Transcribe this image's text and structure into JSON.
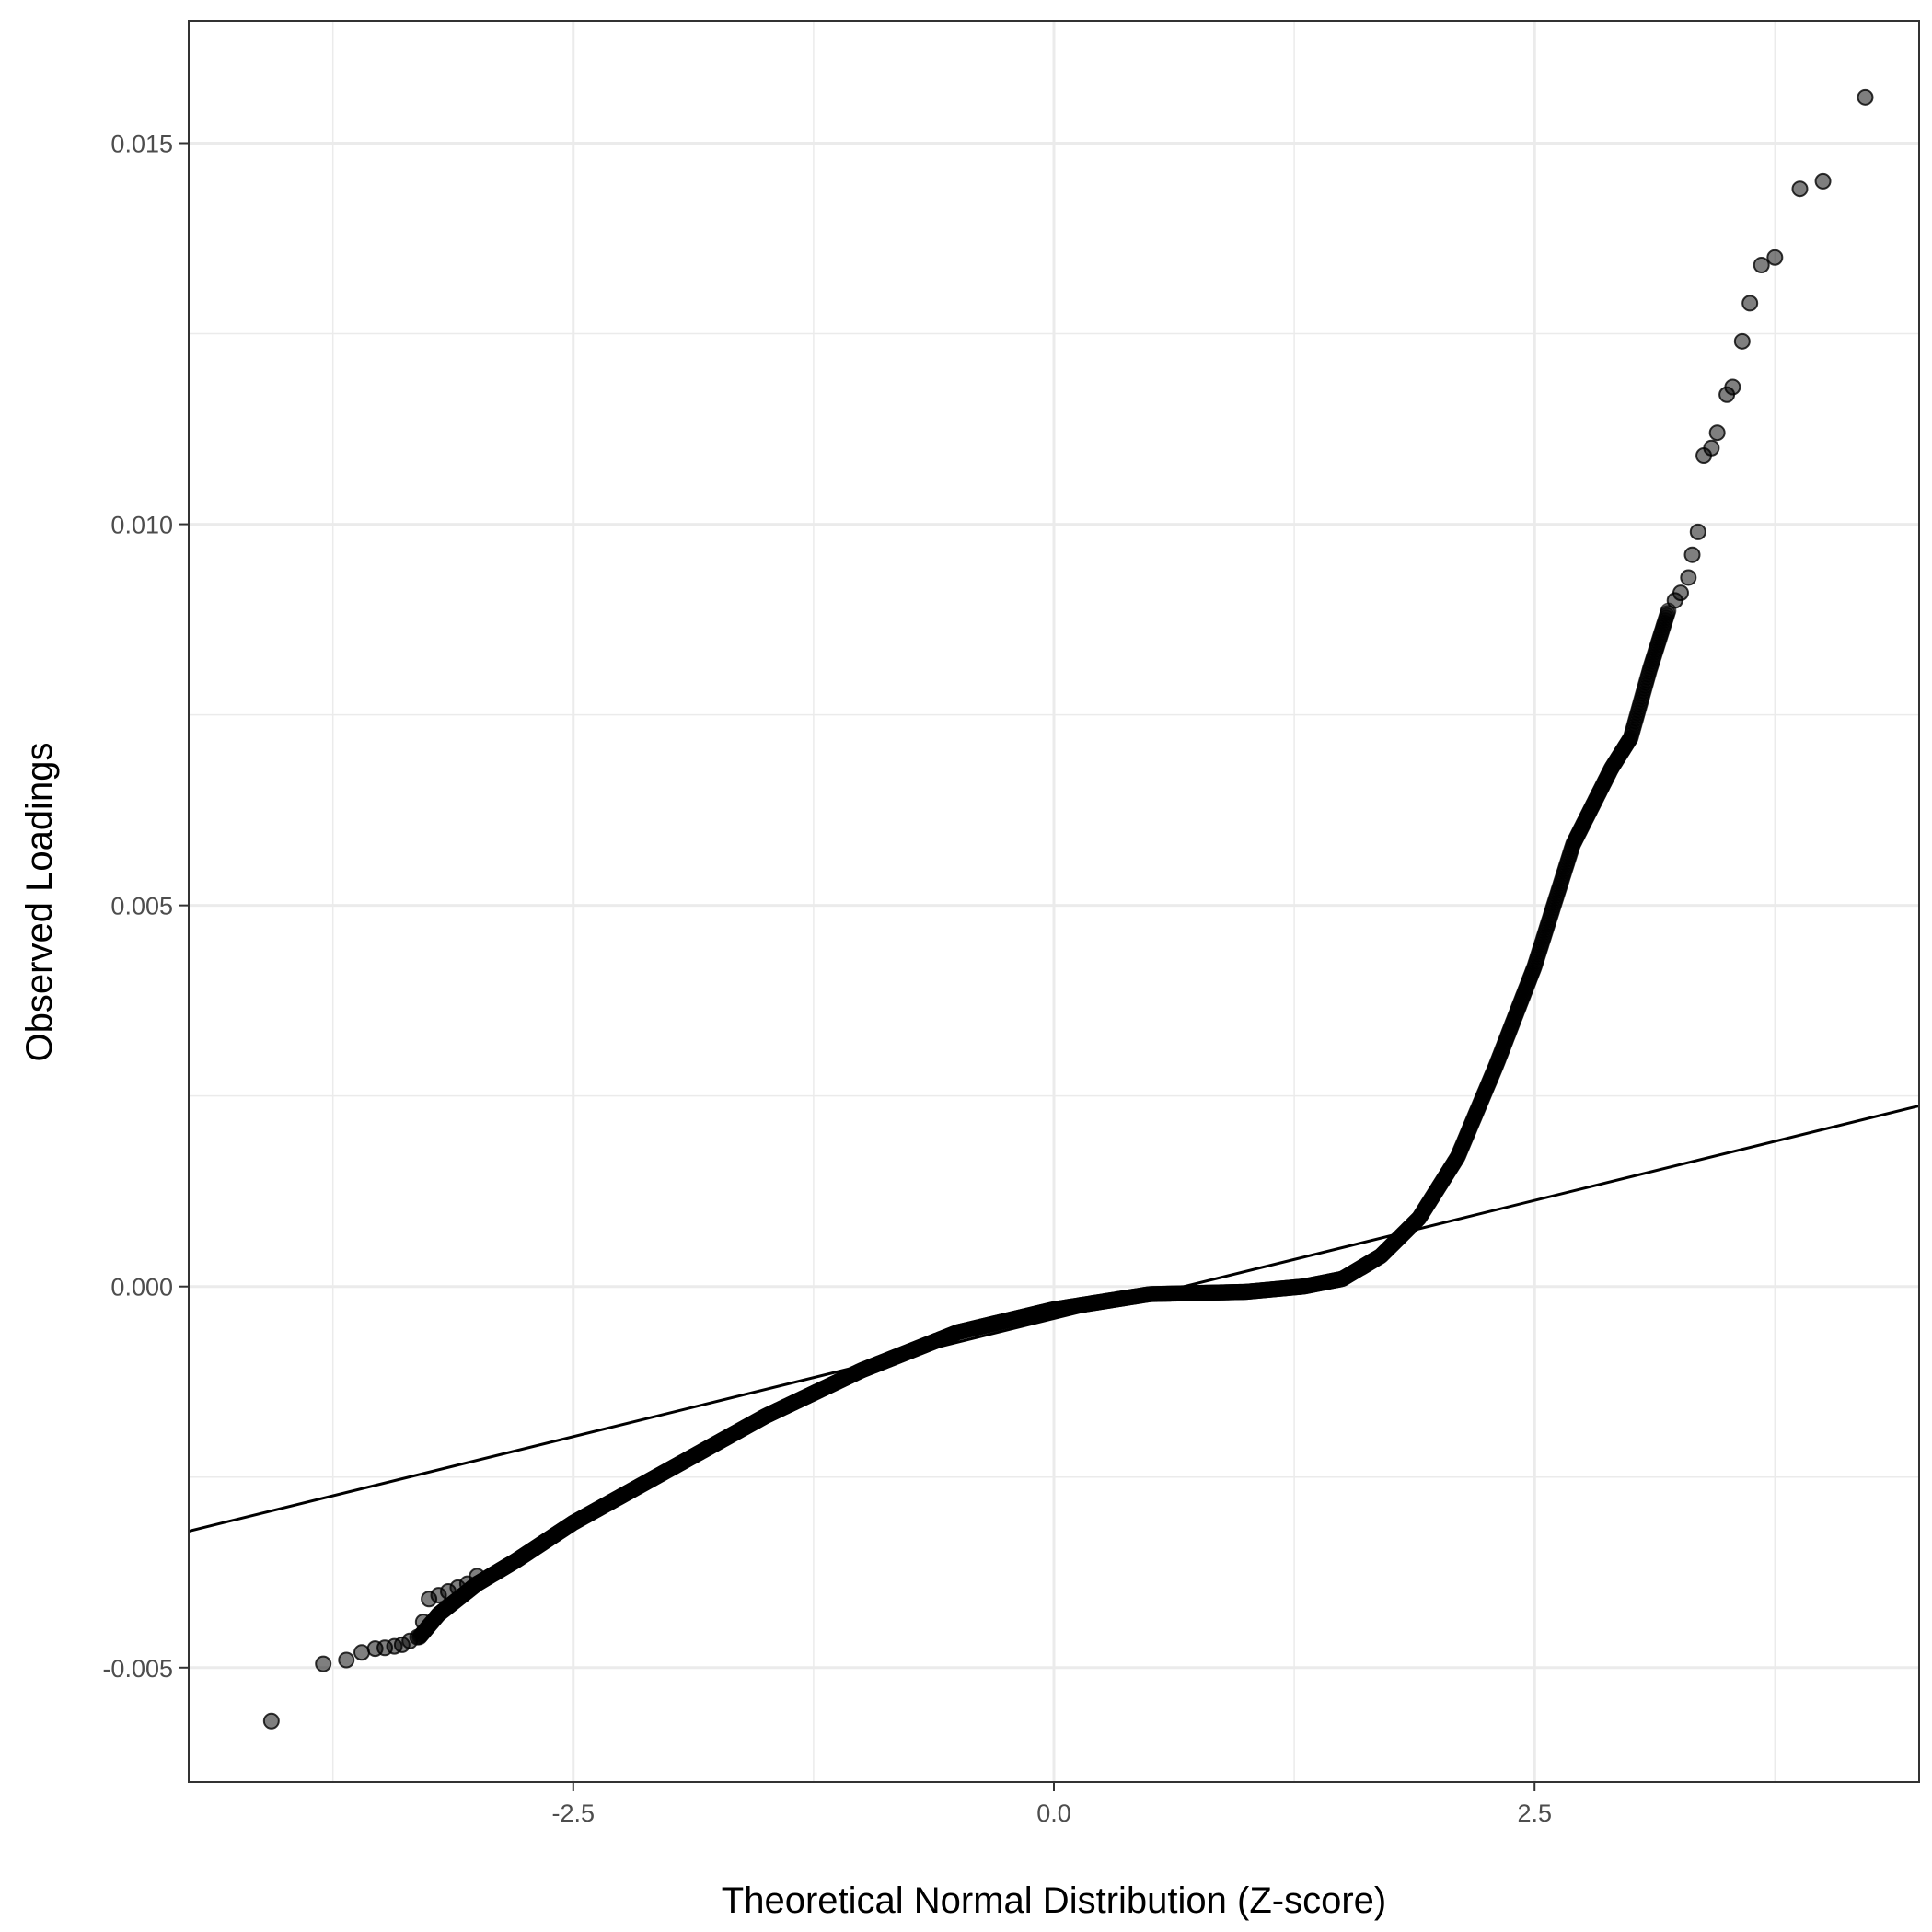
{
  "chart_data": {
    "type": "scatter",
    "title": "",
    "xlabel": "Theoretical Normal Distribution (Z-score)",
    "ylabel": "Observed Loadings",
    "xlim": [
      -4.5,
      4.5
    ],
    "ylim": [
      -0.0065,
      0.0166
    ],
    "xticks": [
      -2.5,
      0.0,
      2.5
    ],
    "xtick_labels": [
      "-2.5",
      "0.0",
      "2.5"
    ],
    "yticks": [
      -0.005,
      0.0,
      0.005,
      0.01,
      0.015
    ],
    "ytick_labels": [
      "-0.005",
      "0.000",
      "0.005",
      "0.010",
      "0.015"
    ],
    "grid": true,
    "legend": "none",
    "point_color": "#000000",
    "point_opacity": 0.5,
    "reference_line": {
      "slope": 0.00062,
      "intercept": -0.00042,
      "color": "#000000"
    },
    "curve_knots": [
      [
        -3.3,
        -0.0046
      ],
      [
        -3.2,
        -0.0043
      ],
      [
        -3.0,
        -0.0039
      ],
      [
        -2.8,
        -0.0036
      ],
      [
        -2.5,
        -0.0031
      ],
      [
        -2.0,
        -0.0024
      ],
      [
        -1.5,
        -0.0017
      ],
      [
        -1.0,
        -0.0011
      ],
      [
        -0.5,
        -0.0006
      ],
      [
        0.0,
        -0.0003
      ],
      [
        0.5,
        -0.0001
      ],
      [
        1.0,
        -7e-05
      ],
      [
        1.3,
        0.0
      ],
      [
        1.5,
        0.0001
      ],
      [
        1.7,
        0.0004
      ],
      [
        1.9,
        0.0009
      ],
      [
        2.1,
        0.0017
      ],
      [
        2.3,
        0.0029
      ],
      [
        2.5,
        0.0042
      ],
      [
        2.7,
        0.0058
      ],
      [
        2.9,
        0.0068
      ],
      [
        3.0,
        0.0072
      ],
      [
        3.1,
        0.0081
      ],
      [
        3.2,
        0.0089
      ]
    ],
    "tail_points": [
      [
        -4.07,
        -0.0057
      ],
      [
        -3.8,
        -0.00495
      ],
      [
        -3.68,
        -0.0049
      ],
      [
        -3.6,
        -0.0048
      ],
      [
        -3.53,
        -0.00475
      ],
      [
        -3.48,
        -0.00474
      ],
      [
        -3.43,
        -0.00472
      ],
      [
        -3.39,
        -0.0047
      ],
      [
        -3.35,
        -0.00465
      ],
      [
        -3.31,
        -0.0046
      ],
      [
        -3.28,
        -0.0044
      ],
      [
        -3.25,
        -0.0041
      ],
      [
        -3.2,
        -0.00405
      ],
      [
        -3.15,
        -0.004
      ],
      [
        -3.1,
        -0.00395
      ],
      [
        -3.05,
        -0.0039
      ],
      [
        -3.0,
        -0.0038
      ],
      [
        3.23,
        0.009
      ],
      [
        3.26,
        0.0091
      ],
      [
        3.3,
        0.0093
      ],
      [
        3.32,
        0.0096
      ],
      [
        3.35,
        0.0099
      ],
      [
        3.38,
        0.0109
      ],
      [
        3.42,
        0.011
      ],
      [
        3.45,
        0.0112
      ],
      [
        3.5,
        0.0117
      ],
      [
        3.53,
        0.0118
      ],
      [
        3.58,
        0.0124
      ],
      [
        3.62,
        0.0129
      ],
      [
        3.68,
        0.0134
      ],
      [
        3.75,
        0.0135
      ],
      [
        3.88,
        0.0144
      ],
      [
        4.0,
        0.0145
      ],
      [
        4.22,
        0.0156
      ]
    ]
  }
}
